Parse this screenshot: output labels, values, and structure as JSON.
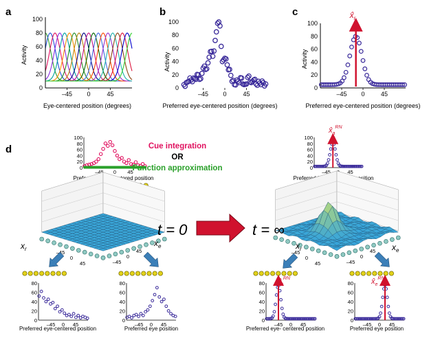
{
  "colors": {
    "purple": "#3a2a9a",
    "red": "#e0115f",
    "green": "#2aa02a",
    "yellow": "#e2d21a",
    "surface": "#3aa6d8",
    "arrow_red": "#d0122e",
    "arrow_blue": "#3b7fb8"
  },
  "panel_a": {
    "letter": "a",
    "ylabel": "Activity",
    "xlabel": "Eye-centered position (degrees)",
    "yticks": [
      "0",
      "20",
      "40",
      "60",
      "80",
      "100"
    ],
    "xticks": [
      "–45",
      "0",
      "45"
    ],
    "curve_count": 19,
    "curve_peak": 80,
    "curve_baseline": 10
  },
  "panel_b": {
    "letter": "b",
    "ylabel": "Activity",
    "xlabel": "Preferred eye-centered position (degrees)",
    "yticks": [
      "0",
      "20",
      "40",
      "60",
      "80",
      "100"
    ],
    "xticks": [
      "–45",
      "0",
      "45"
    ]
  },
  "panel_c": {
    "letter": "c",
    "ylabel": "Activity",
    "xlabel": "Preferred eye-centered position (degrees)",
    "yticks": [
      "0",
      "20",
      "40",
      "60",
      "80",
      "100"
    ],
    "xticks": [
      "–45",
      "0",
      "45"
    ],
    "estimate_label": "x̂",
    "estimate_sub": "r",
    "estimate_peak": 80,
    "estimate_position": -15
  },
  "panel_d": {
    "letter": "d",
    "cue_integration": "Cue integration",
    "or": "OR",
    "function_approx": "Function approximation",
    "t0": "t = 0",
    "tinf": "t = ∞",
    "head_xlabel": "Preferred head-centered position",
    "eye_xlabel": "Preferred eye-centered position",
    "eyepos_xlabel": "Preferred eye position",
    "eye_xlabel_right": "Preferred eye- centered position",
    "head_yticks": [
      "0",
      "20",
      "40",
      "60",
      "80",
      "100"
    ],
    "small_yticks": [
      "0",
      "20",
      "40",
      "60",
      "80"
    ],
    "small_xticks": [
      "–45",
      "0",
      "45"
    ],
    "axis_xr": "x",
    "axis_xr_sub": "r",
    "axis_xe": "x",
    "axis_xe_sub": "e",
    "surface_ticks": [
      "–45",
      "0",
      "45"
    ],
    "xa_label": "x̂",
    "xa_sub": "a",
    "xa_sup": "RN",
    "xr_label": "x̂",
    "xr_sub": "r",
    "xr_sup": "RN",
    "xe_label": "x̂",
    "xe_sub": "e",
    "xe_sup": "RN"
  },
  "chart_data": [
    {
      "type": "line",
      "title": "",
      "xlabel": "Eye-centered position (degrees)",
      "ylabel": "Activity",
      "ylim": [
        0,
        100
      ],
      "xlim": [
        -90,
        90
      ],
      "description_series": "19 Gaussian tuning curves",
      "centers": [
        -90,
        -80,
        -70,
        -60,
        -50,
        -40,
        -30,
        -20,
        -10,
        0,
        10,
        20,
        30,
        40,
        50,
        60,
        70,
        80,
        90
      ],
      "peak": 80,
      "baseline": 10
    },
    {
      "type": "scatter",
      "title": "",
      "xlabel": "Preferred eye-centered position (degrees)",
      "ylabel": "Activity",
      "ylim": [
        0,
        100
      ],
      "xlim": [
        -90,
        90
      ],
      "x": [
        -85,
        -80,
        -75,
        -70,
        -65,
        -60,
        -55,
        -50,
        -45,
        -40,
        -35,
        -30,
        -25,
        -20,
        -15,
        -10,
        -5,
        0,
        5,
        10,
        15,
        20,
        25,
        30,
        35,
        40,
        45,
        50,
        55,
        60,
        65,
        70,
        75,
        80,
        85
      ],
      "y": [
        5,
        8,
        10,
        12,
        15,
        13,
        20,
        14,
        30,
        28,
        38,
        55,
        48,
        72,
        98,
        94,
        40,
        45,
        35,
        28,
        10,
        5,
        12,
        8,
        15,
        5,
        6,
        18,
        8,
        12,
        6,
        10,
        5,
        8,
        6
      ]
    },
    {
      "type": "scatter",
      "title": "",
      "xlabel": "Preferred eye-centered position (degrees)",
      "ylabel": "Activity",
      "ylim": [
        0,
        100
      ],
      "xlim": [
        -90,
        90
      ],
      "peak_x": -15,
      "peak_y": 80,
      "baseline": 5
    }
  ]
}
